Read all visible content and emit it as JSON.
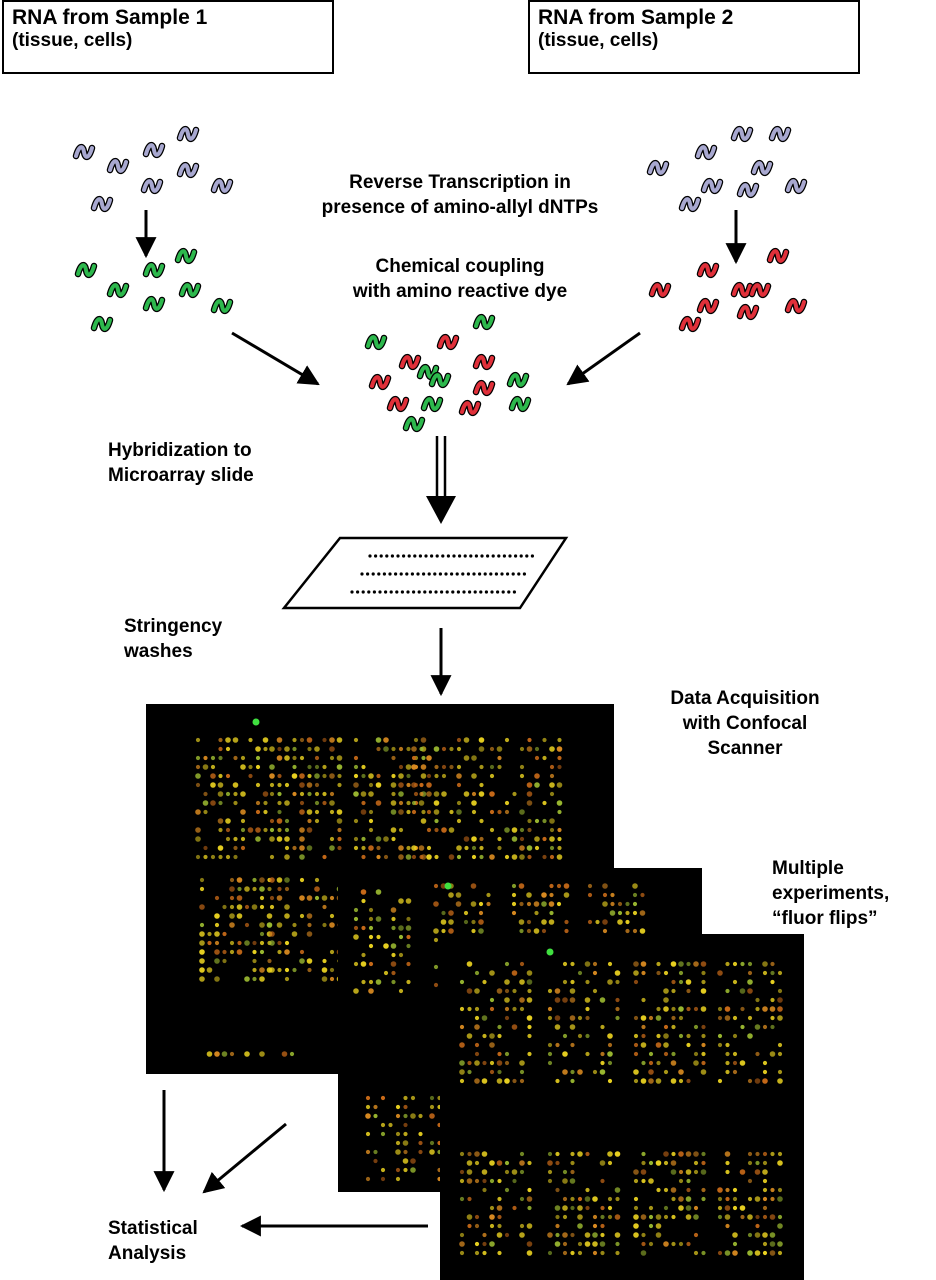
{
  "sample1": {
    "line1": "RNA from Sample 1",
    "line2": "(tissue, cells)"
  },
  "sample2": {
    "line1": "RNA from Sample 2",
    "line2": "(tissue, cells)"
  },
  "reverse_transcription": {
    "line1": "Reverse Transcription in",
    "line2": "presence of amino-allyl dNTPs"
  },
  "chemical_coupling": {
    "line1": "Chemical coupling",
    "line2": "with amino reactive dye"
  },
  "hybridization": {
    "line1": "Hybridization to",
    "line2": "Microarray slide"
  },
  "stringency": {
    "line1": "Stringency",
    "line2": "washes"
  },
  "data_acquisition": {
    "line1": "Data Acquisition",
    "line2": "with Confocal",
    "line3": "Scanner"
  },
  "multiple_experiments": {
    "line1": "Multiple",
    "line2": "experiments,",
    "line3": "“fluor flips”"
  },
  "statistical_analysis": {
    "line1": "Statistical",
    "line2": "Analysis"
  },
  "colors": {
    "rna": "#a8a8d0",
    "green_dye": "#2db84d",
    "red_dye": "#e0303a",
    "scan_background": "#000000",
    "spot_yellow": "#e8d020",
    "spot_orange": "#d98a20"
  }
}
